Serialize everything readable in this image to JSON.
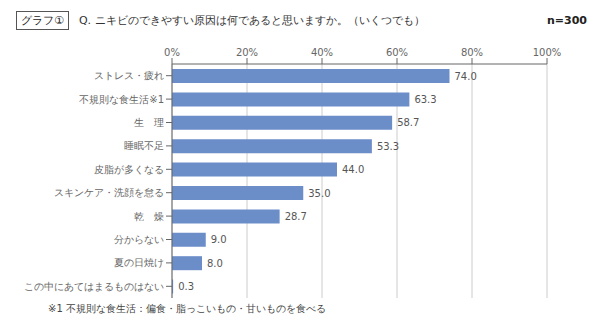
{
  "chart_data": {
    "type": "bar",
    "orientation": "horizontal",
    "title": "Q. ニキビのできやすい原因は何であると思いますか。（いくつでも）",
    "annotations": [
      "グラフ①",
      "n=300",
      "※1 不規則な食生活：偏食・脂っこいもの・甘いものを食べる"
    ],
    "categories": [
      "ストレス・疲れ",
      "不規則な食生活※1",
      "生　理",
      "睡眠不足",
      "皮脂が多くなる",
      "スキンケア・洗顔を怠る",
      "乾　燥",
      "分からない",
      "夏の日焼け",
      "この中にあてはまるものはない"
    ],
    "values": [
      74.0,
      63.3,
      58.7,
      53.3,
      44.0,
      35.0,
      28.7,
      9.0,
      8.0,
      0.3
    ],
    "value_labels": [
      "74.0",
      "63.3",
      "58.7",
      "53.3",
      "44.0",
      "35.0",
      "28.7",
      "9.0",
      "8.0",
      "0.3"
    ],
    "color": "#6B8DC8",
    "xlim": [
      0,
      100
    ],
    "xticks": [
      {
        "value": 0,
        "label": "0%"
      },
      {
        "value": 20,
        "label": "20%"
      },
      {
        "value": 40,
        "label": "40%"
      },
      {
        "value": 60,
        "label": "60%"
      },
      {
        "value": 80,
        "label": "80%"
      },
      {
        "value": 100,
        "label": "100%"
      }
    ],
    "grid": true,
    "data_labels": true
  }
}
